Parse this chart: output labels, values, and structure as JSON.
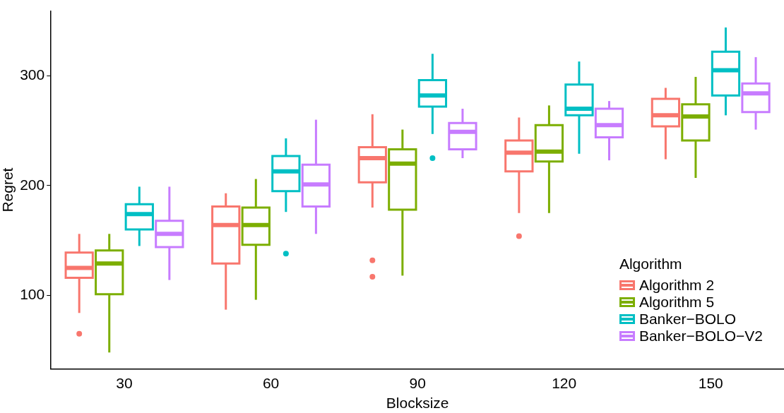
{
  "chart_data": {
    "type": "box",
    "xlabel": "Blocksize",
    "ylabel": "Regret",
    "legend_title": "Algorithm",
    "legend": "bottom right",
    "grid": false,
    "categories": [
      "30",
      "60",
      "90",
      "120",
      "150"
    ],
    "ylim": [
      33,
      359
    ],
    "yticks": [
      100,
      200,
      300
    ],
    "series": [
      {
        "name": "Algorithm 2",
        "color": "#f8766d",
        "boxes": [
          {
            "low": 84,
            "q1": 116,
            "median": 125,
            "q3": 139,
            "high": 156,
            "outliers": [
              65
            ]
          },
          {
            "low": 87,
            "q1": 129,
            "median": 164,
            "q3": 181,
            "high": 193
          },
          {
            "low": 180,
            "q1": 203,
            "median": 225,
            "q3": 235,
            "high": 265,
            "outliers": [
              132,
              117
            ]
          },
          {
            "low": 175,
            "q1": 213,
            "median": 230,
            "q3": 241,
            "high": 262,
            "outliers": [
              154
            ]
          },
          {
            "low": 224,
            "q1": 254,
            "median": 264,
            "q3": 279,
            "high": 289
          }
        ]
      },
      {
        "name": "Algorithm 5",
        "color": "#7cae00",
        "boxes": [
          {
            "low": 48,
            "q1": 101,
            "median": 129,
            "q3": 141,
            "high": 156
          },
          {
            "low": 96,
            "q1": 146,
            "median": 164,
            "q3": 180,
            "high": 206
          },
          {
            "low": 118,
            "q1": 178,
            "median": 220,
            "q3": 233,
            "high": 251
          },
          {
            "low": 175,
            "q1": 222,
            "median": 231,
            "q3": 255,
            "high": 273
          },
          {
            "low": 207,
            "q1": 241,
            "median": 263,
            "q3": 274,
            "high": 299
          }
        ]
      },
      {
        "name": "Banker−BOLO",
        "color": "#00bfc4",
        "boxes": [
          {
            "low": 145,
            "q1": 160,
            "median": 174,
            "q3": 183,
            "high": 199
          },
          {
            "low": 176,
            "q1": 195,
            "median": 213,
            "q3": 227,
            "high": 243,
            "outliers": [
              138
            ]
          },
          {
            "low": 247,
            "q1": 272,
            "median": 282,
            "q3": 296,
            "high": 320,
            "outliers": [
              225
            ]
          },
          {
            "low": 229,
            "q1": 264,
            "median": 270,
            "q3": 292,
            "high": 313
          },
          {
            "low": 264,
            "q1": 282,
            "median": 305,
            "q3": 322,
            "high": 344
          }
        ]
      },
      {
        "name": "Banker−BOLO−V2",
        "color": "#c77cff",
        "boxes": [
          {
            "low": 114,
            "q1": 144,
            "median": 156,
            "q3": 168,
            "high": 199
          },
          {
            "low": 156,
            "q1": 181,
            "median": 201,
            "q3": 219,
            "high": 260
          },
          {
            "low": 225,
            "q1": 233,
            "median": 249,
            "q3": 257,
            "high": 270
          },
          {
            "low": 223,
            "q1": 244,
            "median": 255,
            "q3": 270,
            "high": 277
          },
          {
            "low": 251,
            "q1": 267,
            "median": 284,
            "q3": 293,
            "high": 317
          }
        ]
      }
    ]
  }
}
